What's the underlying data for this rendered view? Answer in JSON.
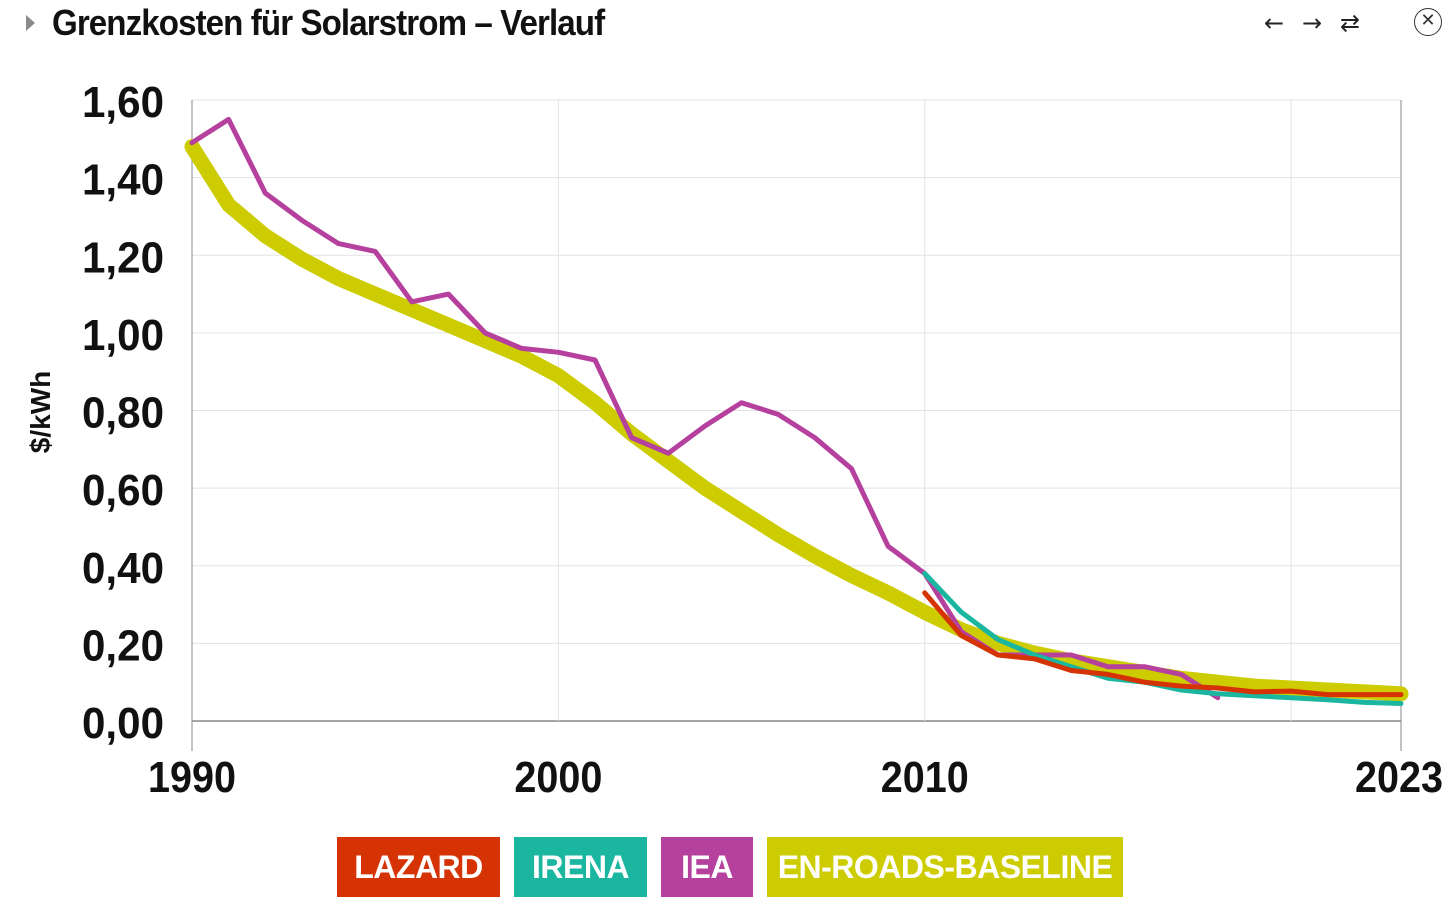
{
  "header": {
    "title": "Grenzkosten für Solarstrom – Verlauf",
    "back_icon": "arrow-left-icon",
    "forward_icon": "arrow-right-icon",
    "repeat_icon": "repeat-icon",
    "close_icon": "close-circle-icon"
  },
  "chart_data": {
    "type": "line",
    "title": "Grenzkosten für Solarstrom – Verlauf",
    "xlabel": "",
    "ylabel": "$/kWh",
    "xlim": [
      1990,
      2023
    ],
    "ylim": [
      0,
      1.6
    ],
    "x_ticks": [
      1990,
      2000,
      2010,
      2023
    ],
    "y_ticks": [
      "0,00",
      "0,20",
      "0,40",
      "0,60",
      "0,80",
      "1,00",
      "1,20",
      "1,40",
      "1,60"
    ],
    "grid": true,
    "legend_position": "bottom",
    "series": [
      {
        "name": "EN-ROADS-BASELINE",
        "color": "#cccc00",
        "x": [
          1990,
          1991,
          1992,
          1993,
          1994,
          1995,
          1996,
          1997,
          1998,
          1999,
          2000,
          2001,
          2002,
          2003,
          2004,
          2005,
          2006,
          2007,
          2008,
          2009,
          2010,
          2011,
          2012,
          2013,
          2014,
          2015,
          2016,
          2017,
          2018,
          2019,
          2020,
          2021,
          2022,
          2023
        ],
        "y": [
          1.48,
          1.33,
          1.25,
          1.19,
          1.14,
          1.1,
          1.06,
          1.02,
          0.98,
          0.94,
          0.89,
          0.82,
          0.74,
          0.67,
          0.6,
          0.54,
          0.48,
          0.425,
          0.375,
          0.33,
          0.28,
          0.235,
          0.2,
          0.175,
          0.155,
          0.14,
          0.125,
          0.11,
          0.1,
          0.09,
          0.085,
          0.08,
          0.075,
          0.07
        ]
      },
      {
        "name": "IEA",
        "color": "#b5409e",
        "x": [
          1990,
          1991,
          1992,
          1993,
          1994,
          1995,
          1996,
          1997,
          1998,
          1999,
          2000,
          2001,
          2002,
          2003,
          2004,
          2005,
          2006,
          2007,
          2008,
          2009,
          2010,
          2011,
          2012,
          2013,
          2014,
          2015,
          2016,
          2017,
          2018
        ],
        "y": [
          1.49,
          1.55,
          1.36,
          1.29,
          1.23,
          1.21,
          1.08,
          1.1,
          1.0,
          0.96,
          0.95,
          0.93,
          0.73,
          0.69,
          0.76,
          0.82,
          0.79,
          0.73,
          0.65,
          0.45,
          0.38,
          0.23,
          0.17,
          0.17,
          0.17,
          0.14,
          0.14,
          0.12,
          0.06
        ]
      },
      {
        "name": "IRENA",
        "color": "#1ab6a0",
        "x": [
          2010,
          2011,
          2012,
          2013,
          2014,
          2015,
          2016,
          2017,
          2018,
          2019,
          2020,
          2021,
          2022,
          2023
        ],
        "y": [
          0.38,
          0.28,
          0.21,
          0.17,
          0.14,
          0.11,
          0.1,
          0.08,
          0.07,
          0.065,
          0.06,
          0.055,
          0.048,
          0.045
        ]
      },
      {
        "name": "LAZARD",
        "color": "#d63305",
        "x": [
          2010,
          2011,
          2012,
          2013,
          2014,
          2015,
          2016,
          2017,
          2018,
          2019,
          2020,
          2021,
          2022,
          2023
        ],
        "y": [
          0.33,
          0.22,
          0.17,
          0.16,
          0.13,
          0.12,
          0.1,
          0.09,
          0.085,
          0.075,
          0.077,
          0.068,
          0.068,
          0.068
        ]
      }
    ]
  },
  "legend": [
    {
      "label": "LAZARD",
      "color": "#d63305"
    },
    {
      "label": "IRENA",
      "color": "#1ab6a0"
    },
    {
      "label": "IEA",
      "color": "#b5409e"
    },
    {
      "label": "EN-ROADS-BASELINE",
      "color": "#cccc00"
    }
  ]
}
